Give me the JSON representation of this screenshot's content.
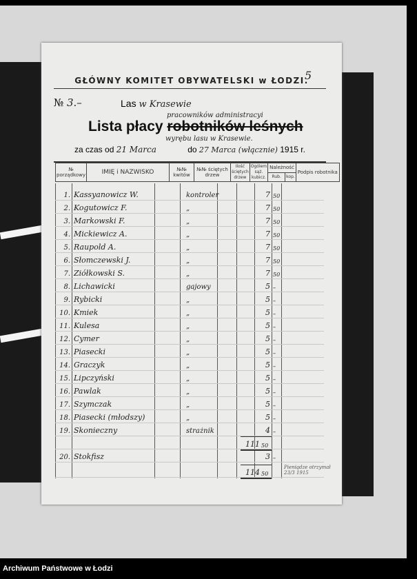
{
  "header": {
    "organization": "GŁÓWNY KOMITET OBYWATELSKI w ŁODZI.",
    "page_mark": "5",
    "number_label": "№",
    "number": "3.–",
    "forest_label": "Las",
    "forest": "w Krasewie",
    "title_prefix": "Lista płacy",
    "title_inserted": "pracowników administracyi",
    "title_struck": "robotników leśnych",
    "title_suffix": "wyrębu lasu w Krasewie.",
    "period_from_label": "za czas od",
    "period_from": "21 Marca",
    "period_to_label": "do",
    "period_to": "27 Marca (włącznie)",
    "year": "1915 r."
  },
  "table": {
    "columns": [
      "№ porządkowy",
      "IMIĘ i NAZWISKO",
      "№№ kwitów",
      "№№ ściętych drzew",
      "Ilość ściętych drzew",
      "Ogólem sąż. kubicz.",
      "Należność",
      "Podpis robotnika"
    ],
    "subcolumns": [
      "Rub.",
      "kop."
    ],
    "rows": [
      {
        "no": "1.",
        "name": "Kassyanowicz W.",
        "role": "kontroler",
        "rub": "7",
        "kop": "50"
      },
      {
        "no": "2.",
        "name": "Kogutowicz F.",
        "role": "„",
        "rub": "7",
        "kop": "50"
      },
      {
        "no": "3.",
        "name": "Markowski F.",
        "role": "„",
        "rub": "7",
        "kop": "50"
      },
      {
        "no": "4.",
        "name": "Mickiewicz A.",
        "role": "„",
        "rub": "7",
        "kop": "50"
      },
      {
        "no": "5.",
        "name": "Raupold A.",
        "role": "„",
        "rub": "7",
        "kop": "50"
      },
      {
        "no": "6.",
        "name": "Słomczewski J.",
        "role": "„",
        "rub": "7",
        "kop": "50"
      },
      {
        "no": "7.",
        "name": "Ziółkowski S.",
        "role": "„",
        "rub": "7",
        "kop": "50"
      },
      {
        "no": "8.",
        "name": "Lichawicki",
        "role": "gajowy",
        "rub": "5",
        "kop": "–"
      },
      {
        "no": "9.",
        "name": "Rybicki",
        "role": "„",
        "rub": "5",
        "kop": "–"
      },
      {
        "no": "10.",
        "name": "Kmiek",
        "role": "„",
        "rub": "5",
        "kop": "–"
      },
      {
        "no": "11.",
        "name": "Kulesa",
        "role": "„",
        "rub": "5",
        "kop": "–"
      },
      {
        "no": "12.",
        "name": "Cymer",
        "role": "„",
        "rub": "5",
        "kop": "–"
      },
      {
        "no": "13.",
        "name": "Piasecki",
        "role": "„",
        "rub": "5",
        "kop": "–"
      },
      {
        "no": "14.",
        "name": "Graczyk",
        "role": "„",
        "rub": "5",
        "kop": "–"
      },
      {
        "no": "15.",
        "name": "Lipczyński",
        "role": "„",
        "rub": "5",
        "kop": "–"
      },
      {
        "no": "16.",
        "name": "Pawlak",
        "role": "„",
        "rub": "5",
        "kop": "–"
      },
      {
        "no": "17.",
        "name": "Szymczak",
        "role": "„",
        "rub": "5",
        "kop": "–"
      },
      {
        "no": "18.",
        "name": "Piasecki (młodszy)",
        "role": "„",
        "rub": "5",
        "kop": "–"
      },
      {
        "no": "19.",
        "name": "Skonieczny",
        "role": "strażnik",
        "rub": "4",
        "kop": "–"
      },
      {
        "no": "",
        "name": "",
        "role": "",
        "rub": "111",
        "kop": "50"
      },
      {
        "no": "20.",
        "name": "Stokfisz",
        "role": "",
        "rub": "3",
        "kop": "–"
      },
      {
        "no": "",
        "name": "",
        "role": "",
        "rub": "114",
        "kop": "50"
      }
    ],
    "note": "Pieniądze otrzymał 23/3 1915"
  },
  "footer": {
    "archive": "Archiwum Państwowe w Łodzi"
  }
}
